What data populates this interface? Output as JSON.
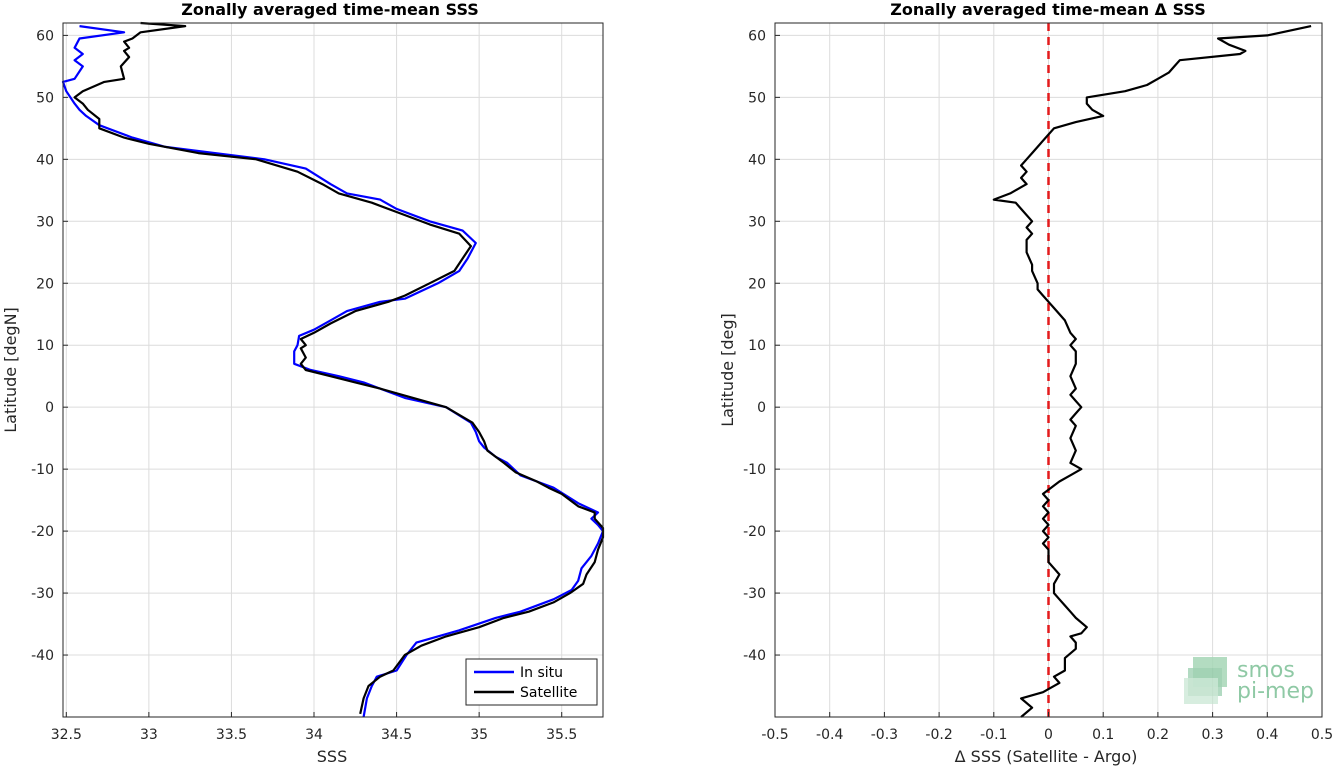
{
  "chart_data": [
    {
      "type": "line",
      "title": "Zonally averaged time-mean SSS",
      "xlabel": "SSS",
      "ylabel": "Latitude [degN]",
      "xlim": [
        32.48,
        35.75
      ],
      "ylim": [
        -50,
        62
      ],
      "xticks": [
        32.5,
        33,
        33.5,
        34,
        34.5,
        35,
        35.5
      ],
      "xtick_labels": [
        "32.5",
        "33",
        "33.5",
        "34",
        "34.5",
        "35",
        "35.5"
      ],
      "yticks": [
        -40,
        -30,
        -20,
        -10,
        0,
        10,
        20,
        30,
        40,
        50,
        60
      ],
      "ytick_labels": [
        "-40",
        "-30",
        "-20",
        "-10",
        "0",
        "10",
        "20",
        "30",
        "40",
        "50",
        "60"
      ],
      "grid": true,
      "legend": "bottom-right",
      "series": [
        {
          "name": "In situ",
          "color": "#0000ff",
          "points": [
            [
              34.3,
              -50
            ],
            [
              34.32,
              -47
            ],
            [
              34.35,
              -45
            ],
            [
              34.38,
              -43.5
            ],
            [
              34.5,
              -42.5
            ],
            [
              34.56,
              -40
            ],
            [
              34.62,
              -38
            ],
            [
              34.75,
              -37
            ],
            [
              34.88,
              -36
            ],
            [
              35.1,
              -34
            ],
            [
              35.25,
              -33
            ],
            [
              35.45,
              -31
            ],
            [
              35.56,
              -29.5
            ],
            [
              35.6,
              -28
            ],
            [
              35.62,
              -26
            ],
            [
              35.68,
              -24
            ],
            [
              35.72,
              -22
            ],
            [
              35.75,
              -20
            ],
            [
              35.72,
              -19
            ],
            [
              35.68,
              -18
            ],
            [
              35.72,
              -17
            ],
            [
              35.6,
              -15.5
            ],
            [
              35.45,
              -13
            ],
            [
              35.35,
              -12
            ],
            [
              35.25,
              -11
            ],
            [
              35.17,
              -9
            ],
            [
              35.1,
              -8
            ],
            [
              35.03,
              -6.5
            ],
            [
              35.0,
              -5.5
            ],
            [
              34.98,
              -4
            ],
            [
              34.95,
              -2.5
            ],
            [
              34.8,
              0
            ],
            [
              34.55,
              1.5
            ],
            [
              34.4,
              3
            ],
            [
              34.3,
              4
            ],
            [
              34.15,
              5
            ],
            [
              33.98,
              6
            ],
            [
              33.88,
              7
            ],
            [
              33.88,
              9
            ],
            [
              33.9,
              10
            ],
            [
              33.91,
              11.5
            ],
            [
              34.0,
              12.5
            ],
            [
              34.1,
              14
            ],
            [
              34.2,
              15.5
            ],
            [
              34.4,
              17
            ],
            [
              34.55,
              17.5
            ],
            [
              34.75,
              20
            ],
            [
              34.88,
              22
            ],
            [
              34.93,
              24
            ],
            [
              34.98,
              26.5
            ],
            [
              34.9,
              28.5
            ],
            [
              34.7,
              30
            ],
            [
              34.5,
              32
            ],
            [
              34.4,
              33.5
            ],
            [
              34.2,
              34.5
            ],
            [
              34.1,
              36
            ],
            [
              33.95,
              38.5
            ],
            [
              33.7,
              40
            ],
            [
              33.4,
              41
            ],
            [
              33.1,
              42
            ],
            [
              32.9,
              43.5
            ],
            [
              32.7,
              45.5
            ],
            [
              32.62,
              47
            ],
            [
              32.58,
              48
            ],
            [
              32.55,
              49
            ],
            [
              32.5,
              51
            ],
            [
              32.48,
              52.5
            ],
            [
              32.55,
              53
            ],
            [
              32.6,
              55
            ],
            [
              32.55,
              56
            ],
            [
              32.6,
              57
            ],
            [
              32.55,
              58
            ],
            [
              32.58,
              59.5
            ],
            [
              32.85,
              60.5
            ],
            [
              32.58,
              61.5
            ]
          ]
        },
        {
          "name": "Satellite",
          "color": "#000000",
          "points": [
            [
              34.28,
              -49.5
            ],
            [
              34.3,
              -47
            ],
            [
              34.33,
              -45
            ],
            [
              34.4,
              -43.5
            ],
            [
              34.48,
              -42.5
            ],
            [
              34.55,
              -40
            ],
            [
              34.65,
              -38.5
            ],
            [
              34.8,
              -37
            ],
            [
              35.0,
              -35.5
            ],
            [
              35.15,
              -34
            ],
            [
              35.3,
              -33
            ],
            [
              35.45,
              -31.5
            ],
            [
              35.55,
              -30
            ],
            [
              35.63,
              -28.5
            ],
            [
              35.65,
              -27
            ],
            [
              35.7,
              -25
            ],
            [
              35.72,
              -23
            ],
            [
              35.75,
              -21
            ],
            [
              35.75,
              -19.5
            ],
            [
              35.7,
              -18
            ],
            [
              35.7,
              -17
            ],
            [
              35.6,
              -16
            ],
            [
              35.5,
              -14
            ],
            [
              35.42,
              -13
            ],
            [
              35.35,
              -12
            ],
            [
              35.22,
              -10.5
            ],
            [
              35.15,
              -9
            ],
            [
              35.05,
              -7
            ],
            [
              35.03,
              -5.5
            ],
            [
              35.0,
              -4
            ],
            [
              34.96,
              -2.5
            ],
            [
              34.8,
              0
            ],
            [
              34.6,
              1.5
            ],
            [
              34.4,
              3
            ],
            [
              34.25,
              4
            ],
            [
              34.1,
              5
            ],
            [
              33.95,
              6
            ],
            [
              33.92,
              7
            ],
            [
              33.95,
              8
            ],
            [
              33.92,
              9.5
            ],
            [
              33.95,
              10
            ],
            [
              33.92,
              11
            ],
            [
              34.0,
              12
            ],
            [
              34.1,
              13.5
            ],
            [
              34.25,
              15.5
            ],
            [
              34.45,
              17
            ],
            [
              34.55,
              18
            ],
            [
              34.7,
              20
            ],
            [
              34.85,
              22
            ],
            [
              34.9,
              24
            ],
            [
              34.95,
              26
            ],
            [
              34.88,
              28
            ],
            [
              34.7,
              29.5
            ],
            [
              34.5,
              31.5
            ],
            [
              34.35,
              33
            ],
            [
              34.15,
              34.5
            ],
            [
              34.05,
              36
            ],
            [
              33.9,
              38
            ],
            [
              33.65,
              40
            ],
            [
              33.3,
              41
            ],
            [
              33.0,
              42.5
            ],
            [
              32.85,
              43.5
            ],
            [
              32.7,
              45
            ],
            [
              32.7,
              46.5
            ],
            [
              32.63,
              48
            ],
            [
              32.6,
              49
            ],
            [
              32.55,
              50
            ],
            [
              32.6,
              51
            ],
            [
              32.73,
              52.5
            ],
            [
              32.85,
              53
            ],
            [
              32.83,
              55
            ],
            [
              32.88,
              56.5
            ],
            [
              32.85,
              57.5
            ],
            [
              32.88,
              58
            ],
            [
              32.85,
              59
            ],
            [
              32.9,
              59.5
            ],
            [
              32.95,
              60.5
            ],
            [
              33.22,
              61.5
            ],
            [
              32.95,
              62
            ]
          ]
        }
      ]
    },
    {
      "type": "line",
      "title": "Zonally averaged time-mean Δ SSS",
      "xlabel": "Δ SSS (Satellite - Argo)",
      "ylabel": "Latitude [deg]",
      "xlim": [
        -0.5,
        0.5
      ],
      "ylim": [
        -50,
        62
      ],
      "xticks": [
        -0.5,
        -0.4,
        -0.3,
        -0.2,
        -0.1,
        0,
        0.1,
        0.2,
        0.3,
        0.4,
        0.5
      ],
      "xtick_labels": [
        "-0.5",
        "-0.4",
        "-0.3",
        "-0.2",
        "-0.1",
        "0",
        "0.1",
        "0.2",
        "0.3",
        "0.4",
        "0.5"
      ],
      "yticks": [
        -40,
        -30,
        -20,
        -10,
        0,
        10,
        20,
        30,
        40,
        50,
        60
      ],
      "ytick_labels": [
        "-40",
        "-30",
        "-20",
        "-10",
        "0",
        "10",
        "20",
        "30",
        "40",
        "50",
        "60"
      ],
      "grid": true,
      "reference_line": {
        "x": 0,
        "color": "#e41a1c"
      },
      "series": [
        {
          "color": "#000000",
          "points": [
            [
              -0.05,
              -50
            ],
            [
              -0.03,
              -48.5
            ],
            [
              -0.05,
              -47
            ],
            [
              -0.01,
              -46
            ],
            [
              0.0,
              -45.5
            ],
            [
              0.02,
              -44.5
            ],
            [
              0.01,
              -43.5
            ],
            [
              0.03,
              -42.5
            ],
            [
              0.03,
              -40.5
            ],
            [
              0.05,
              -39
            ],
            [
              0.05,
              -38
            ],
            [
              0.04,
              -37
            ],
            [
              0.06,
              -36.5
            ],
            [
              0.07,
              -35.5
            ],
            [
              0.05,
              -34
            ],
            [
              0.04,
              -33
            ],
            [
              0.03,
              -32
            ],
            [
              0.02,
              -31
            ],
            [
              0.01,
              -30
            ],
            [
              0.01,
              -28.5
            ],
            [
              0.02,
              -27
            ],
            [
              0.01,
              -26
            ],
            [
              0.0,
              -25
            ],
            [
              0.0,
              -23
            ],
            [
              -0.01,
              -22
            ],
            [
              0.0,
              -21
            ],
            [
              -0.01,
              -20
            ],
            [
              0.0,
              -19
            ],
            [
              -0.01,
              -18
            ],
            [
              0.0,
              -17
            ],
            [
              -0.01,
              -16
            ],
            [
              0.0,
              -15
            ],
            [
              -0.01,
              -14
            ],
            [
              0.02,
              -12
            ],
            [
              0.04,
              -11
            ],
            [
              0.06,
              -10
            ],
            [
              0.04,
              -9
            ],
            [
              0.05,
              -7
            ],
            [
              0.04,
              -5
            ],
            [
              0.05,
              -3
            ],
            [
              0.04,
              -2
            ],
            [
              0.05,
              -1
            ],
            [
              0.06,
              0
            ],
            [
              0.05,
              1
            ],
            [
              0.04,
              2
            ],
            [
              0.05,
              3
            ],
            [
              0.04,
              5
            ],
            [
              0.05,
              7
            ],
            [
              0.05,
              9
            ],
            [
              0.04,
              10
            ],
            [
              0.05,
              11
            ],
            [
              0.04,
              12
            ],
            [
              0.03,
              14
            ],
            [
              0.01,
              16
            ],
            [
              0.0,
              17
            ],
            [
              -0.01,
              18
            ],
            [
              -0.02,
              19
            ],
            [
              -0.02,
              20
            ],
            [
              -0.03,
              22
            ],
            [
              -0.03,
              23
            ],
            [
              -0.04,
              25
            ],
            [
              -0.04,
              27
            ],
            [
              -0.03,
              28
            ],
            [
              -0.04,
              29
            ],
            [
              -0.03,
              30
            ],
            [
              -0.05,
              32
            ],
            [
              -0.06,
              33
            ],
            [
              -0.1,
              33.5
            ],
            [
              -0.07,
              34.5
            ],
            [
              -0.05,
              35.5
            ],
            [
              -0.04,
              36
            ],
            [
              -0.05,
              37
            ],
            [
              -0.04,
              38
            ],
            [
              -0.05,
              39
            ],
            [
              -0.04,
              40
            ],
            [
              -0.03,
              41
            ],
            [
              -0.02,
              42
            ],
            [
              -0.01,
              43
            ],
            [
              0.0,
              44
            ],
            [
              0.01,
              45
            ],
            [
              0.05,
              46
            ],
            [
              0.1,
              47
            ],
            [
              0.08,
              48
            ],
            [
              0.07,
              49
            ],
            [
              0.07,
              50
            ],
            [
              0.14,
              51
            ],
            [
              0.18,
              52
            ],
            [
              0.2,
              53
            ],
            [
              0.22,
              54
            ],
            [
              0.23,
              55
            ],
            [
              0.24,
              56
            ],
            [
              0.35,
              57
            ],
            [
              0.36,
              57.5
            ],
            [
              0.33,
              58.5
            ],
            [
              0.31,
              59.5
            ],
            [
              0.4,
              60
            ],
            [
              0.48,
              61.5
            ]
          ]
        }
      ]
    }
  ],
  "legend": {
    "entries": [
      {
        "label": "In situ",
        "color": "#0000ff"
      },
      {
        "label": "Satellite",
        "color": "#000000"
      }
    ]
  },
  "logo": {
    "line1": "smos",
    "line2": "pi-mep",
    "color": "#8fc9a5"
  }
}
